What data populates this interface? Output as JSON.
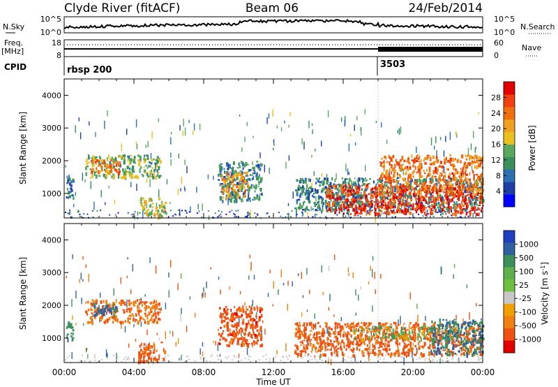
{
  "header": {
    "station": "Clyde River (fitACF)",
    "beam": "Beam 06",
    "date": "24/Feb/2014"
  },
  "panels": {
    "nsky": {
      "left_label": "N.Sky",
      "left_ticks": [
        "10^5",
        "10^0"
      ],
      "right_label": "N.Search",
      "right_ticks": [
        "10^5",
        "10^0"
      ]
    },
    "freq": {
      "left_label_line1": "Freq.",
      "left_label_line2": "[MHz]",
      "left_ticks": [
        "18",
        "8"
      ],
      "right_label": "Nave",
      "right_ticks": [
        "60",
        "0"
      ]
    },
    "cpid": {
      "label": "CPID",
      "segments": [
        {
          "start": "00:00",
          "text": "rbsp 200"
        },
        {
          "start": "18:00",
          "text": "3503"
        }
      ]
    }
  },
  "colors": {
    "power_scale": [
      "#0000ff",
      "#1f3fa8",
      "#2e6fb0",
      "#3a8f5a",
      "#5aa860",
      "#e8c020",
      "#f0a020",
      "#f07010",
      "#f04010",
      "#e00000"
    ],
    "velocity_scale": [
      "#2040c0",
      "#3060a0",
      "#3a8f5a",
      "#60b050",
      "#70c040",
      "#c8c8c8",
      "#f0a000",
      "#f08010",
      "#f05010",
      "#e00000"
    ]
  },
  "chart_data": [
    {
      "type": "heatmap",
      "title": "Power",
      "ylabel": "Slant Range [km]",
      "xlabel": "",
      "x_ticks": [
        "00:00",
        "04:00",
        "08:00",
        "12:00",
        "16:00",
        "20:00",
        "00:00"
      ],
      "y_ticks": [
        1000,
        2000,
        3000,
        4000
      ],
      "xlim_hours": [
        0,
        24
      ],
      "ylim_km": [
        250,
        4500
      ],
      "colorbar": {
        "label": "Power [dB]",
        "ticks": [
          4,
          8,
          12,
          16,
          20,
          24,
          28
        ],
        "range": [
          0,
          32
        ]
      },
      "regions": [
        {
          "t0": 0.1,
          "t1": 0.5,
          "r0": 900,
          "r1": 1600,
          "value": 8
        },
        {
          "t0": 1.2,
          "t1": 5.5,
          "r0": 1500,
          "r1": 2200,
          "value": 14
        },
        {
          "t0": 1.5,
          "t1": 3.2,
          "r0": 1650,
          "r1": 2050,
          "value": 24
        },
        {
          "t0": 4.2,
          "t1": 5.8,
          "r0": 300,
          "r1": 900,
          "value": 18
        },
        {
          "t0": 8.8,
          "t1": 11.3,
          "r0": 800,
          "r1": 2000,
          "value": 10
        },
        {
          "t0": 9.0,
          "t1": 10.5,
          "r0": 900,
          "r1": 1700,
          "value": 22
        },
        {
          "t0": 13.2,
          "t1": 24.0,
          "r0": 500,
          "r1": 1500,
          "value": 10
        },
        {
          "t0": 15.0,
          "t1": 24.0,
          "r0": 400,
          "r1": 1300,
          "value": 28
        },
        {
          "t0": 18.0,
          "t1": 24.0,
          "r0": 1000,
          "r1": 2200,
          "value": 24
        }
      ]
    },
    {
      "type": "heatmap",
      "title": "Velocity",
      "ylabel": "Slant Range [km]",
      "xlabel": "Time UT",
      "x_ticks": [
        "00:00",
        "04:00",
        "08:00",
        "12:00",
        "16:00",
        "20:00",
        "00:00"
      ],
      "y_ticks": [
        1000,
        2000,
        3000,
        4000
      ],
      "xlim_hours": [
        0,
        24
      ],
      "ylim_km": [
        250,
        4500
      ],
      "colorbar": {
        "label": "Velocity [m s^-1]",
        "ticks": [
          1000,
          500,
          100,
          25,
          -25,
          -100,
          -500,
          -1000
        ]
      },
      "regions": [
        {
          "t0": 0.1,
          "t1": 0.5,
          "r0": 900,
          "r1": 1600,
          "value": 200
        },
        {
          "t0": 1.2,
          "t1": 5.5,
          "r0": 1500,
          "r1": 2200,
          "value": -300
        },
        {
          "t0": 1.6,
          "t1": 3.0,
          "r0": 1700,
          "r1": 2100,
          "value": 400
        },
        {
          "t0": 4.2,
          "t1": 5.8,
          "r0": 300,
          "r1": 900,
          "value": -400
        },
        {
          "t0": 8.8,
          "t1": 11.3,
          "r0": 800,
          "r1": 2000,
          "value": -500
        },
        {
          "t0": 13.2,
          "t1": 24.0,
          "r0": 500,
          "r1": 1500,
          "value": -400
        },
        {
          "t0": 16.5,
          "t1": 22.5,
          "r0": 1000,
          "r1": 1400,
          "value": 0
        },
        {
          "t0": 21.0,
          "t1": 24.0,
          "r0": 500,
          "r1": 1600,
          "value": 300
        }
      ]
    }
  ]
}
